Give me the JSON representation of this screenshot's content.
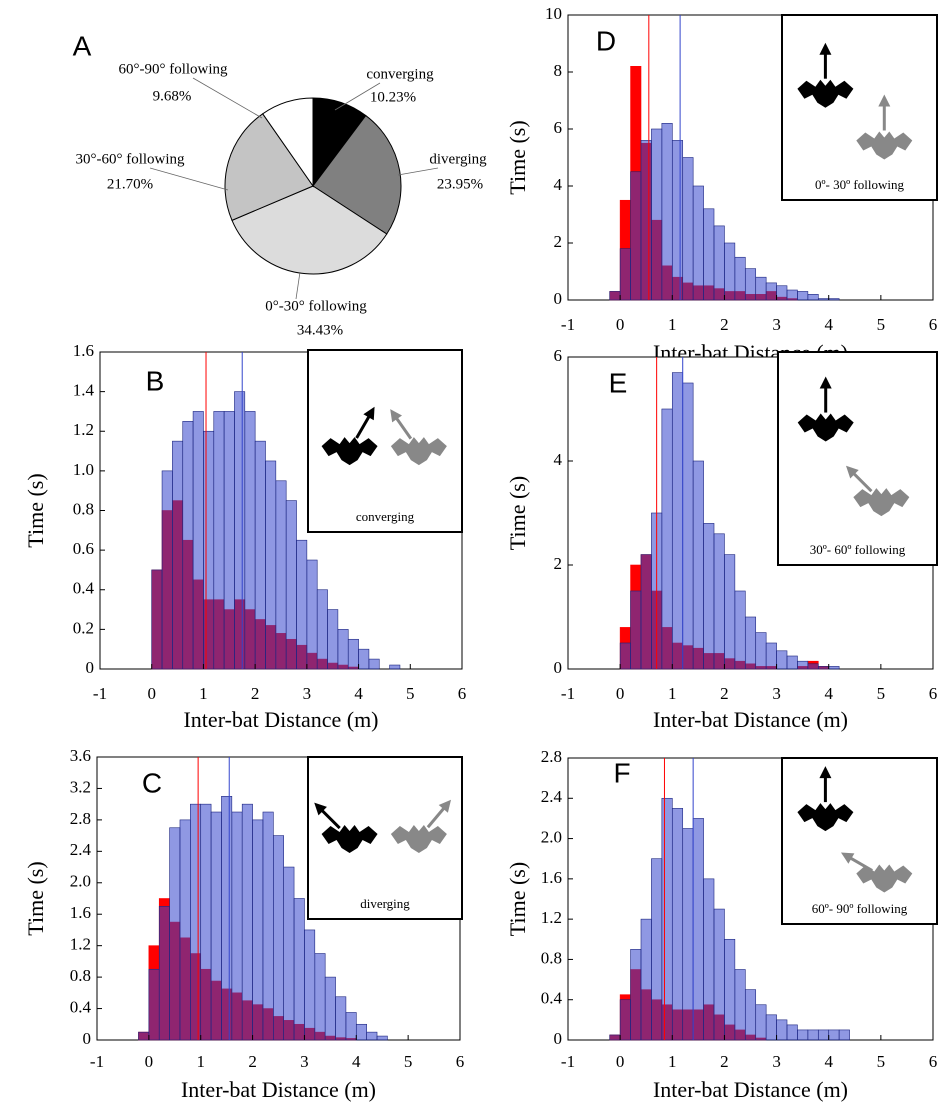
{
  "chart_data": [
    {
      "type": "pie",
      "panel": "A",
      "categories": [
        "converging",
        "diverging",
        "0°-30° following",
        "30°-60° following",
        "60°-90° following"
      ],
      "values": [
        10.23,
        23.95,
        34.43,
        21.7,
        9.68
      ],
      "value_labels": [
        "10.23%",
        "23.95%",
        "34.43%",
        "21.70%",
        "9.68%"
      ],
      "colors": [
        "#000000",
        "#808080",
        "#dcdcdc",
        "#c4c4c4",
        "#ffffff"
      ]
    },
    {
      "type": "histogram",
      "panel": "B",
      "inset_label": "converging",
      "xlabel": "Inter-bat Distance (m)",
      "ylabel": "Time (s)",
      "bins": [
        -0.2,
        0,
        0.2,
        0.4,
        0.6,
        0.8,
        1.0,
        1.2,
        1.4,
        1.6,
        1.8,
        2.0,
        2.2,
        2.4,
        2.6,
        2.8,
        3.0,
        3.2,
        3.4,
        3.6,
        3.8,
        4.0,
        4.2,
        4.4,
        4.6,
        4.8
      ],
      "series": [
        {
          "color": "#ff0000",
          "mean": 1.05,
          "values": [
            0,
            0.5,
            0.8,
            0.85,
            0.65,
            0.45,
            0.35,
            0.35,
            0.3,
            0.35,
            0.3,
            0.25,
            0.22,
            0.18,
            0.15,
            0.12,
            0.08,
            0.05,
            0.03,
            0.02,
            0.01,
            0,
            0,
            0,
            0
          ]
        },
        {
          "color": "#3344cc",
          "mean": 1.75,
          "values": [
            0,
            0.5,
            1.0,
            1.15,
            1.25,
            1.3,
            1.2,
            1.3,
            1.3,
            1.4,
            1.3,
            1.15,
            1.05,
            0.95,
            0.85,
            0.65,
            0.55,
            0.4,
            0.3,
            0.2,
            0.15,
            0.1,
            0.05,
            0,
            0.02
          ]
        }
      ],
      "xlim": [
        -1,
        6
      ],
      "xticks": [
        -1,
        0,
        1,
        2,
        3,
        4,
        5,
        6
      ],
      "ylim": [
        0,
        1.6
      ],
      "yticks": [
        0,
        0.2,
        0.4,
        0.6,
        0.8,
        {
          "value": 1,
          "label": "1.0"
        },
        1.2,
        1.4,
        1.6
      ]
    },
    {
      "type": "histogram",
      "panel": "C",
      "inset_label": "diverging",
      "xlabel": "Inter-bat Distance (m)",
      "ylabel": "Time (s)",
      "bins": [
        -0.2,
        0,
        0.2,
        0.4,
        0.6,
        0.8,
        1.0,
        1.2,
        1.4,
        1.6,
        1.8,
        2.0,
        2.2,
        2.4,
        2.6,
        2.8,
        3.0,
        3.2,
        3.4,
        3.6,
        3.8,
        4.0,
        4.2,
        4.4,
        4.6,
        4.8
      ],
      "series": [
        {
          "color": "#ff0000",
          "mean": 0.95,
          "values": [
            0.1,
            1.2,
            1.8,
            1.5,
            1.3,
            1.1,
            0.9,
            0.75,
            0.65,
            0.6,
            0.5,
            0.45,
            0.4,
            0.3,
            0.25,
            0.2,
            0.15,
            0.1,
            0.05,
            0.03,
            0.02,
            0,
            0,
            0,
            0
          ]
        },
        {
          "color": "#3344cc",
          "mean": 1.55,
          "values": [
            0.1,
            0.9,
            1.7,
            2.7,
            2.8,
            3.0,
            3.0,
            2.9,
            3.1,
            2.9,
            3.0,
            2.8,
            2.9,
            2.6,
            2.2,
            1.8,
            1.4,
            1.1,
            0.8,
            0.55,
            0.35,
            0.2,
            0.1,
            0.05,
            0
          ]
        }
      ],
      "xlim": [
        -1,
        6
      ],
      "xticks": [
        -1,
        0,
        1,
        2,
        3,
        4,
        5,
        6
      ],
      "ylim": [
        0,
        3.6
      ],
      "yticks": [
        0,
        0.4,
        0.8,
        1.2,
        1.6,
        {
          "value": 2,
          "label": "2.0"
        },
        2.4,
        2.8,
        3.2,
        3.6
      ]
    },
    {
      "type": "histogram",
      "panel": "D",
      "inset_label": "0º- 30º following",
      "xlabel": "Inter-bat Distance (m)",
      "ylabel": "Time (s)",
      "bins": [
        -0.2,
        0,
        0.2,
        0.4,
        0.6,
        0.8,
        1.0,
        1.2,
        1.4,
        1.6,
        1.8,
        2.0,
        2.2,
        2.4,
        2.6,
        2.8,
        3.0,
        3.2,
        3.4,
        3.6,
        3.8,
        4.0,
        4.2,
        4.4,
        4.6,
        4.8
      ],
      "series": [
        {
          "color": "#ff0000",
          "mean": 0.55,
          "values": [
            0.3,
            3.5,
            8.2,
            5.5,
            2.8,
            1.2,
            0.8,
            0.6,
            0.5,
            0.5,
            0.4,
            0.3,
            0.3,
            0.2,
            0.2,
            0.3,
            0.1,
            0.05,
            0,
            0,
            0,
            0,
            0,
            0,
            0
          ]
        },
        {
          "color": "#3344cc",
          "mean": 1.15,
          "values": [
            0.3,
            1.8,
            4.5,
            5.6,
            6.0,
            6.2,
            5.6,
            5.0,
            4.0,
            3.2,
            2.6,
            2.0,
            1.5,
            1.1,
            0.8,
            0.6,
            0.5,
            0.35,
            0.3,
            0.2,
            0.05,
            0.05,
            0,
            0,
            0
          ]
        }
      ],
      "xlim": [
        -1,
        6
      ],
      "xticks": [
        -1,
        0,
        1,
        2,
        3,
        4,
        5,
        6
      ],
      "ylim": [
        0,
        10
      ],
      "yticks": [
        0,
        2,
        4,
        6,
        8,
        10
      ]
    },
    {
      "type": "histogram",
      "panel": "E",
      "inset_label": "30º- 60º following",
      "xlabel": "Inter-bat Distance (m)",
      "ylabel": "Time (s)",
      "bins": [
        -0.2,
        0,
        0.2,
        0.4,
        0.6,
        0.8,
        1.0,
        1.2,
        1.4,
        1.6,
        1.8,
        2.0,
        2.2,
        2.4,
        2.6,
        2.8,
        3.0,
        3.2,
        3.4,
        3.6,
        3.8,
        4.0,
        4.2,
        4.4,
        4.6,
        4.8
      ],
      "series": [
        {
          "color": "#ff0000",
          "mean": 0.7,
          "values": [
            0,
            0.8,
            2.0,
            2.2,
            1.5,
            0.8,
            0.5,
            0.45,
            0.4,
            0.3,
            0.3,
            0.2,
            0.15,
            0.1,
            0.05,
            0.05,
            0,
            0,
            0.05,
            0.15,
            0.05,
            0,
            0,
            0,
            0
          ]
        },
        {
          "color": "#3344cc",
          "mean": 1.2,
          "values": [
            0,
            0.5,
            1.5,
            2.2,
            3.0,
            5.0,
            5.7,
            5.5,
            4.0,
            2.8,
            2.6,
            2.2,
            1.5,
            1.0,
            0.7,
            0.5,
            0.35,
            0.25,
            0.15,
            0.1,
            0.05,
            0.05,
            0,
            0,
            0
          ]
        }
      ],
      "xlim": [
        -1,
        6
      ],
      "xticks": [
        -1,
        0,
        1,
        2,
        3,
        4,
        5,
        6
      ],
      "ylim": [
        0,
        6
      ],
      "yticks": [
        0,
        2,
        4,
        6
      ]
    },
    {
      "type": "histogram",
      "panel": "F",
      "inset_label": "60º- 90º following",
      "xlabel": "Inter-bat Distance (m)",
      "ylabel": "Time (s)",
      "bins": [
        -0.2,
        0,
        0.2,
        0.4,
        0.6,
        0.8,
        1.0,
        1.2,
        1.4,
        1.6,
        1.8,
        2.0,
        2.2,
        2.4,
        2.6,
        2.8,
        3.0,
        3.2,
        3.4,
        3.6,
        3.8,
        4.0,
        4.2,
        4.4,
        4.6,
        4.8
      ],
      "series": [
        {
          "color": "#ff0000",
          "mean": 0.85,
          "values": [
            0.05,
            0.45,
            0.7,
            0.5,
            0.4,
            0.35,
            0.3,
            0.3,
            0.3,
            0.35,
            0.25,
            0.15,
            0.1,
            0.05,
            0.02,
            0,
            0,
            0,
            0,
            0,
            0,
            0,
            0,
            0,
            0
          ]
        },
        {
          "color": "#3344cc",
          "mean": 1.4,
          "values": [
            0.05,
            0.4,
            0.9,
            1.2,
            1.8,
            2.4,
            2.3,
            2.1,
            2.2,
            1.6,
            1.3,
            1.0,
            0.7,
            0.5,
            0.35,
            0.25,
            0.2,
            0.15,
            0.1,
            0.1,
            0.1,
            0.1,
            0.1,
            0,
            0
          ]
        }
      ],
      "xlim": [
        -1,
        6
      ],
      "xticks": [
        -1,
        0,
        1,
        2,
        3,
        4,
        5,
        6
      ],
      "ylim": [
        0,
        2.8
      ],
      "yticks": [
        0,
        0.4,
        0.8,
        1.2,
        1.6,
        {
          "value": 2,
          "label": "2.0"
        },
        2.4,
        2.8
      ]
    }
  ]
}
